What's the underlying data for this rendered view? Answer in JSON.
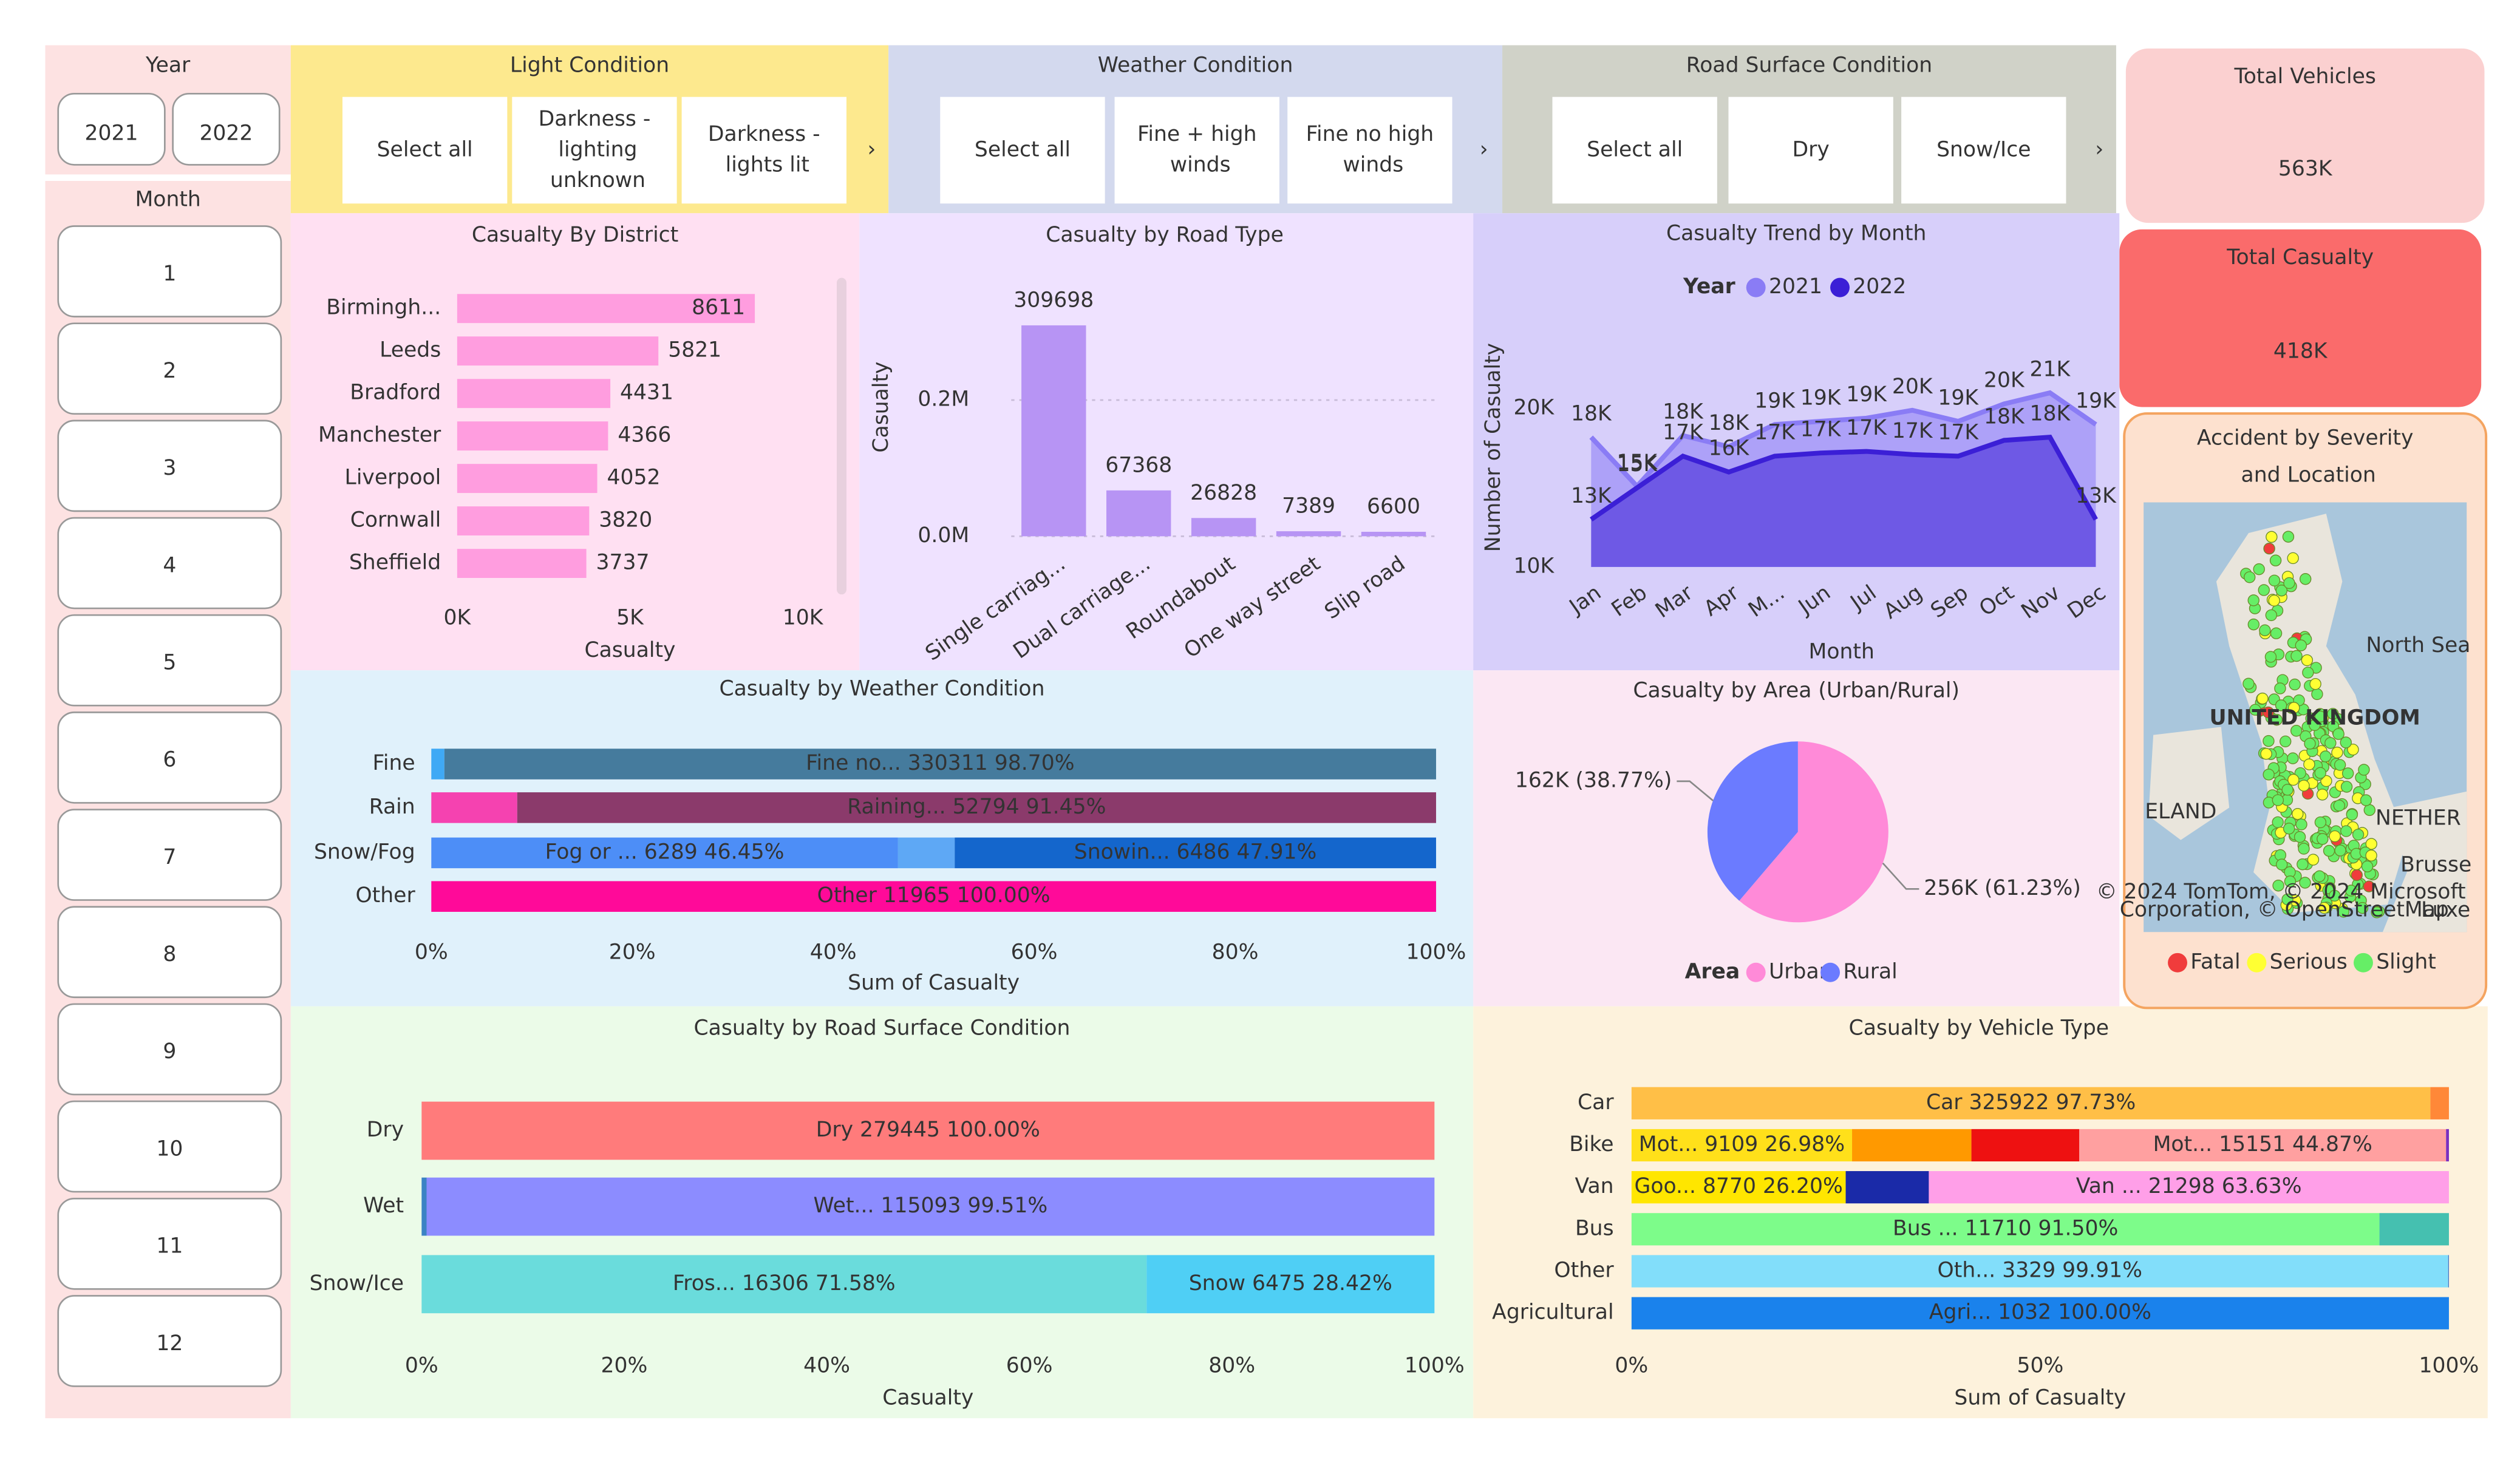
{
  "slicers": {
    "year": {
      "title": "Year",
      "options": [
        "2021",
        "2022"
      ]
    },
    "month": {
      "title": "Month",
      "options": [
        "1",
        "2",
        "3",
        "4",
        "5",
        "6",
        "7",
        "8",
        "9",
        "10",
        "11",
        "12"
      ]
    },
    "light_condition": {
      "title": "Light Condition",
      "options": [
        "Select all",
        "Darkness - lighting unknown",
        "Darkness - lights lit"
      ]
    },
    "weather_condition": {
      "title": "Weather Condition",
      "options": [
        "Select all",
        "Fine + high winds",
        "Fine no high winds"
      ]
    },
    "road_surface_condition": {
      "title": "Road Surface Condition",
      "options": [
        "Select all",
        "Dry",
        "Snow/Ice"
      ]
    }
  },
  "cards": [
    {
      "title": "Total Vehicles",
      "value": "563K"
    },
    {
      "title": "Total Casualty",
      "value": "418K"
    }
  ],
  "chart_data": [
    {
      "type": "bar",
      "title": "Casualty By District",
      "xlabel": "Casualty",
      "categories": [
        "Birmingh...",
        "Leeds",
        "Bradford",
        "Manchester",
        "Liverpool",
        "Cornwall",
        "Sheffield"
      ],
      "values": [
        8611,
        5821,
        4431,
        4366,
        4052,
        3820,
        3737
      ],
      "color": "#ff9ddf",
      "xlim": [
        0,
        10000
      ],
      "xticks": [
        {
          "value": 0,
          "label": "0K"
        },
        {
          "value": 5000,
          "label": "5K"
        },
        {
          "value": 10000,
          "label": "10K"
        }
      ]
    },
    {
      "type": "column",
      "title": "Casualty by Road Type",
      "ylabel": "Casualty",
      "categories": [
        "Single carriag...",
        "Dual carriage...",
        "Roundabout",
        "One way street",
        "Slip road"
      ],
      "values": [
        309698,
        67368,
        26828,
        7389,
        6600
      ],
      "color": "#b794f4",
      "ylim": [
        0,
        370000
      ],
      "yticks": [
        {
          "value": 0,
          "label": "0.0M"
        },
        {
          "value": 200000,
          "label": "0.2M"
        }
      ],
      "grid": true
    },
    {
      "type": "area",
      "title": "Casualty Trend by Month",
      "xlabel": "Month",
      "ylabel": "Number of Casualty",
      "legend_title": "Year",
      "categories": [
        "Jan",
        "Feb",
        "Mar",
        "Apr",
        "M...",
        "Jun",
        "Jul",
        "Aug",
        "Sep",
        "Oct",
        "Nov",
        "Dec"
      ],
      "series": [
        {
          "name": "2021",
          "color": "#8a7cf5",
          "values": [
            18200,
            15100,
            18300,
            17600,
            19000,
            19200,
            19400,
            19900,
            19200,
            20300,
            21000,
            19000
          ],
          "value_labels": [
            "18K",
            "15K",
            "18K",
            "18K",
            "19K",
            "19K",
            "19K",
            "20K",
            "19K",
            "20K",
            "21K",
            "19K"
          ]
        },
        {
          "name": "2022",
          "color": "#3b1fd6",
          "values": [
            13000,
            15000,
            17000,
            16000,
            17000,
            17200,
            17300,
            17100,
            17000,
            18000,
            18200,
            13000
          ],
          "value_labels": [
            "13K",
            "15K",
            "17K",
            "16K",
            "17K",
            "17K",
            "17K",
            "17K",
            "17K",
            "18K",
            "18K",
            "13K"
          ]
        }
      ],
      "ylim": [
        10000,
        25000
      ],
      "yticks": [
        {
          "value": 10000,
          "label": "10K"
        },
        {
          "value": 20000,
          "label": "20K"
        }
      ]
    },
    {
      "type": "stacked",
      "title": "Casualty by Weather Condition",
      "xlabel": "Sum of Casualty",
      "categories": [
        "Fine",
        "Rain",
        "Snow/Fog",
        "Other"
      ],
      "stacks": [
        {
          "values": [
            1.3,
            98.7
          ],
          "value_labels": [
            null,
            "Fine no... 330311 98.70%"
          ],
          "colors": [
            "#3fa9f5",
            "#457b9d"
          ]
        },
        {
          "values": [
            8.55,
            91.45
          ],
          "value_labels": [
            null,
            "Raining... 52794 91.45%"
          ],
          "colors": [
            "#f542b0",
            "#8b3a6b"
          ]
        },
        {
          "values": [
            46.45,
            5.64,
            47.91
          ],
          "value_labels": [
            "Fog or ... 6289 46.45%",
            null,
            "Snowin... 6486 47.91%"
          ],
          "colors": [
            "#4d8ef7",
            "#5ea8f5",
            "#1466cc"
          ]
        },
        {
          "values": [
            100
          ],
          "value_labels": [
            "Other 11965 100.00%"
          ],
          "colors": [
            "#ff0a99"
          ]
        }
      ],
      "xlim": [
        0,
        100
      ],
      "xticks": [
        {
          "value": 0,
          "label": "0%"
        },
        {
          "value": 20,
          "label": "20%"
        },
        {
          "value": 40,
          "label": "40%"
        },
        {
          "value": 60,
          "label": "60%"
        },
        {
          "value": 80,
          "label": "80%"
        },
        {
          "value": 100,
          "label": "100%"
        }
      ]
    },
    {
      "type": "pie",
      "title": "Casualty by Area (Urban/Rural)",
      "legend_title": "Area",
      "categories": [
        "Urban",
        "Rural"
      ],
      "values": [
        61.23,
        38.77
      ],
      "value_labels": [
        "256K (61.23%)",
        "162K (38.77%)"
      ],
      "colors": [
        "#ff8ad8",
        "#6b7bff"
      ]
    },
    {
      "type": "stacked",
      "title": "Casualty by Road Surface Condition",
      "xlabel": "Casualty",
      "categories": [
        "Dry",
        "Wet",
        "Snow/Ice"
      ],
      "stacks": [
        {
          "values": [
            100
          ],
          "value_labels": [
            "Dry 279445 100.00%"
          ],
          "colors": [
            "#ff7b7b"
          ]
        },
        {
          "values": [
            0.49,
            99.51
          ],
          "value_labels": [
            null,
            "Wet... 115093 99.51%"
          ],
          "colors": [
            "#3b82c4",
            "#8c8cff"
          ]
        },
        {
          "values": [
            71.58,
            28.42
          ],
          "value_labels": [
            "Fros... 16306 71.58%",
            "Snow 6475 28.42%"
          ],
          "colors": [
            "#6adcdc",
            "#4fcff5"
          ]
        }
      ],
      "xlim": [
        0,
        100
      ],
      "xticks": [
        {
          "value": 0,
          "label": "0%"
        },
        {
          "value": 20,
          "label": "20%"
        },
        {
          "value": 40,
          "label": "40%"
        },
        {
          "value": 60,
          "label": "60%"
        },
        {
          "value": 80,
          "label": "80%"
        },
        {
          "value": 100,
          "label": "100%"
        }
      ]
    },
    {
      "type": "stacked",
      "title": "Casualty by Vehicle Type",
      "xlabel": "Sum of Casualty",
      "categories": [
        "Car",
        "Bike",
        "Van",
        "Bus",
        "Other",
        "Agricultural"
      ],
      "stacks": [
        {
          "values": [
            97.73,
            2.27
          ],
          "value_labels": [
            "Car 325922 97.73%",
            null
          ],
          "colors": [
            "#ffbf47",
            "#ff8838"
          ]
        },
        {
          "values": [
            26.98,
            14.6,
            13.2,
            44.87,
            0.35
          ],
          "value_labels": [
            "Mot... 9109 26.98%",
            null,
            null,
            "Mot... 15151 44.87%",
            null
          ],
          "colors": [
            "#ffe01a",
            "#ff9900",
            "#ee1111",
            "#ffa0a0",
            "#7a2fbf"
          ]
        },
        {
          "values": [
            26.2,
            10.17,
            63.63
          ],
          "value_labels": [
            "Goo... 8770 26.20%",
            null,
            "Van ... 21298 63.63%"
          ],
          "colors": [
            "#ffe600",
            "#1a2aa8",
            "#ff9fe8"
          ]
        },
        {
          "values": [
            91.5,
            8.5
          ],
          "value_labels": [
            "Bus ... 11710 91.50%",
            null
          ],
          "colors": [
            "#7dfc8a",
            "#45c0b0"
          ]
        },
        {
          "values": [
            99.91,
            0.09
          ],
          "value_labels": [
            "Oth... 3329 99.91%",
            null
          ],
          "colors": [
            "#82defa",
            "#4070c0"
          ]
        },
        {
          "values": [
            100
          ],
          "value_labels": [
            "Agri... 1032 100.00%"
          ],
          "colors": [
            "#1a82ec"
          ]
        }
      ],
      "xlim": [
        0,
        100
      ],
      "xticks": [
        {
          "value": 0,
          "label": "0%"
        },
        {
          "value": 50,
          "label": "50%"
        },
        {
          "value": 100,
          "label": "100%"
        }
      ]
    },
    {
      "type": "map",
      "title": "Accident by Severity and Location",
      "series": [
        {
          "name": "Fatal",
          "color": "#f03c3c"
        },
        {
          "name": "Serious",
          "color": "#ffff33"
        },
        {
          "name": "Slight",
          "color": "#66ee66"
        }
      ],
      "labels": [
        "North Sea",
        "UNITED KINGDOM",
        "ELAND",
        "NETHER",
        "Brusse",
        "Luxe"
      ],
      "attribution": "© 2024 TomTom, © 2024 Microsoft Corporation, © OpenStreetMap"
    }
  ]
}
